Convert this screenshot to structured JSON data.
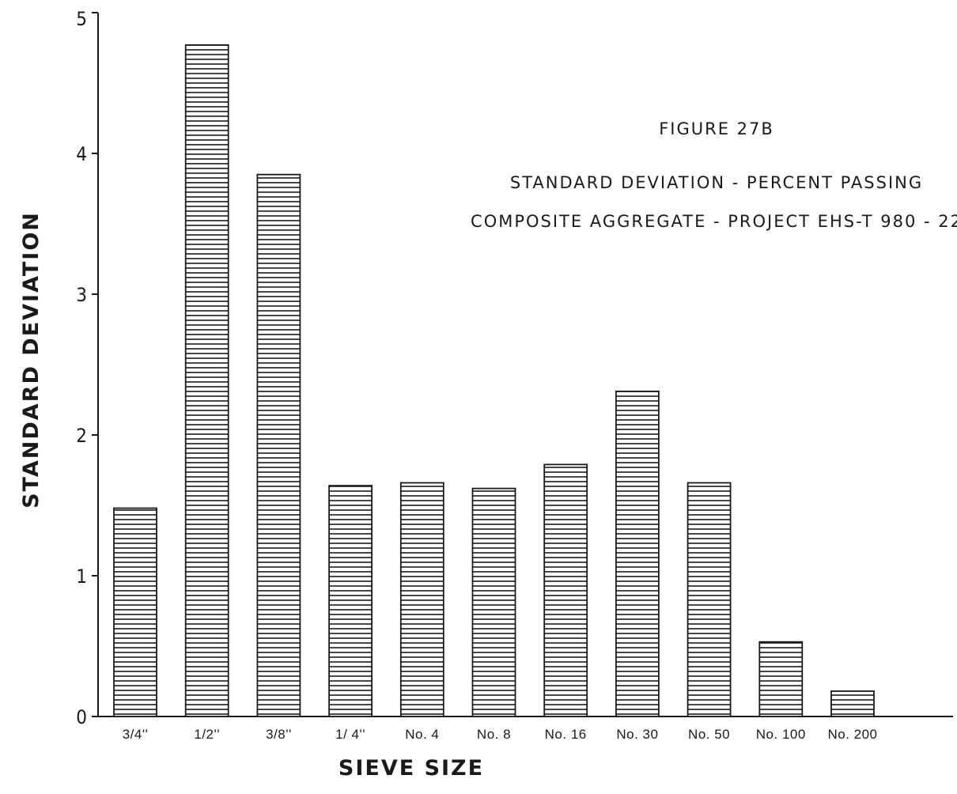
{
  "chart_data": {
    "type": "bar",
    "figure_label": "FIGURE 27B",
    "title_line1": "STANDARD DEVIATION - PERCENT PASSING",
    "title_line2": "COMPOSITE AGGREGATE - PROJECT EHS-T 980 - 22",
    "xlabel": "SIEVE SIZE",
    "ylabel": "STANDARD DEVIATION",
    "ylim": [
      0,
      5
    ],
    "yticks": [
      "0",
      "1",
      "2",
      "3",
      "4",
      "5"
    ],
    "categories": [
      "3/4''",
      "1/2''",
      "3/8''",
      "1/ 4''",
      "No. 4",
      "No. 8",
      "No. 16",
      "No. 30",
      "No. 50",
      "No. 100",
      "No. 200"
    ],
    "values": [
      1.48,
      4.77,
      3.85,
      1.64,
      1.66,
      1.62,
      1.79,
      2.31,
      1.66,
      0.53,
      0.18
    ],
    "grid": false,
    "bar_fill": "horizontal-hatch",
    "colors": {
      "ink": "#1a1a1a",
      "background": "#ffffff"
    }
  }
}
